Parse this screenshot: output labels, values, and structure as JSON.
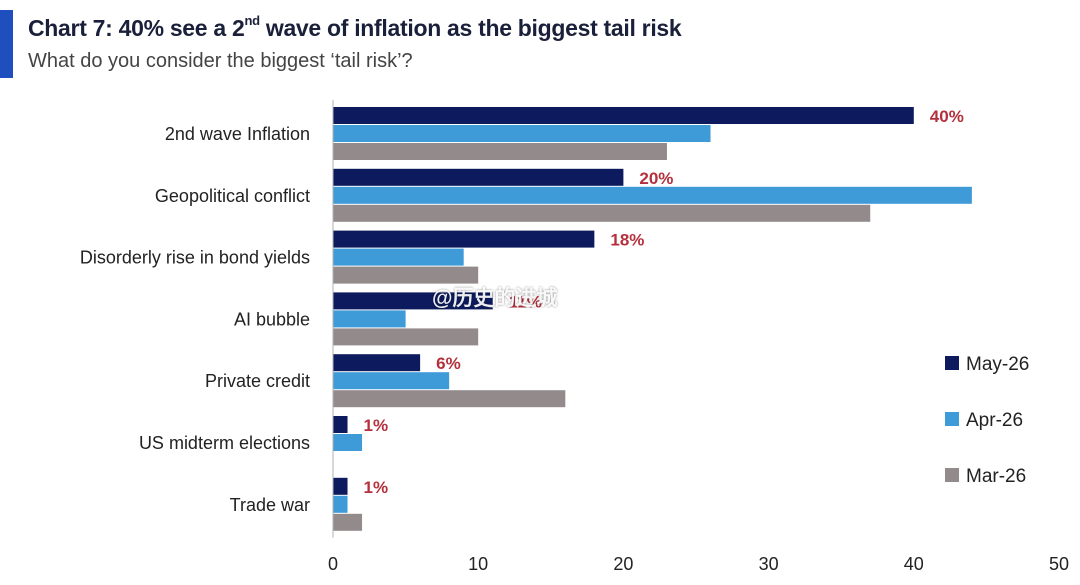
{
  "header": {
    "title_pre": "Chart 7: 40% see a 2",
    "title_sup": "nd",
    "title_post": " wave of inflation as the biggest tail risk",
    "subtitle": "What do you consider the biggest ‘tail risk’?"
  },
  "watermark": "@历史的进城",
  "colors": {
    "accent": "#1f4fbf",
    "may": "#0d1b5e",
    "apr": "#3f9ad8",
    "mar": "#938b8b",
    "label": "#b5303d"
  },
  "chart_data": {
    "type": "bar",
    "orientation": "horizontal",
    "categories": [
      "2nd wave Inflation",
      "Geopolitical conflict",
      "Disorderly rise in bond yields",
      "AI bubble",
      "Private credit",
      "US midterm elections",
      "Trade war"
    ],
    "series": [
      {
        "name": "May-26",
        "values": [
          40,
          20,
          18,
          11,
          6,
          1,
          1
        ]
      },
      {
        "name": "Apr-26",
        "values": [
          26,
          44,
          9,
          5,
          8,
          2,
          1
        ]
      },
      {
        "name": "Mar-26",
        "values": [
          23,
          37,
          10,
          10,
          16,
          0,
          2
        ]
      }
    ],
    "data_labels": [
      "40%",
      "20%",
      "18%",
      "11%",
      "6%",
      "1%",
      "1%"
    ],
    "xlim": [
      0,
      50
    ],
    "xticks": [
      0,
      10,
      20,
      30,
      40,
      50
    ],
    "legend_position": "right"
  }
}
